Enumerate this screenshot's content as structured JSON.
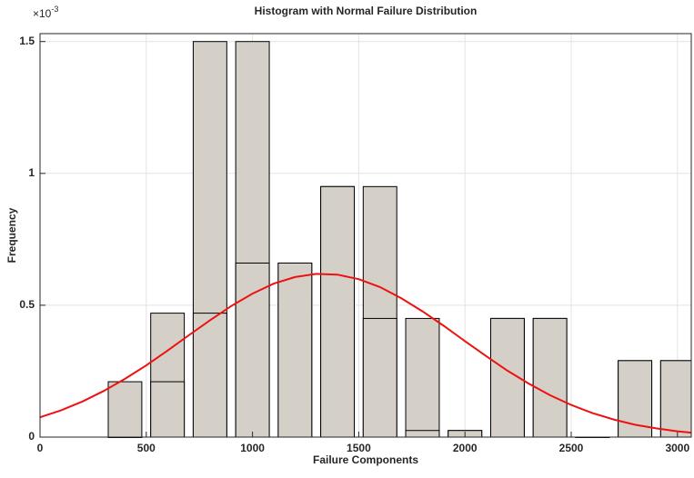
{
  "chart_data": {
    "type": "bar",
    "title": "Histogram with Normal Failure Distribution",
    "xlabel": "Failure Components",
    "ylabel": "Frequency",
    "y_multiplier": "×10",
    "y_multiplier_exponent": "-3",
    "x": [
      400,
      600,
      800,
      1000,
      1200,
      1400,
      1600,
      1800,
      2000,
      2200,
      2400,
      2600,
      2800,
      3000
    ],
    "series": [
      {
        "color": "#d4d0c8",
        "values": [
          0.21,
          0.47,
          1.5,
          1.5,
          0.66,
          0.95,
          0.95,
          0.45,
          0.025,
          0.45,
          0.45,
          0,
          0.29,
          0.29
        ]
      },
      {
        "color": "#d4d0c8",
        "values": [
          0,
          0.21,
          0.47,
          0.66,
          0.66,
          0.95,
          0.45,
          0.025,
          0.025,
          0.45,
          0.45,
          0,
          0.29,
          0.29
        ]
      }
    ],
    "curve": {
      "type": "line",
      "color": "#ee1111",
      "x": [
        0,
        100,
        200,
        300,
        400,
        500,
        600,
        700,
        800,
        900,
        1000,
        1100,
        1200,
        1300,
        1400,
        1500,
        1600,
        1700,
        1800,
        1900,
        2000,
        2100,
        2200,
        2300,
        2400,
        2500,
        2600,
        2700,
        2800,
        2900,
        3000,
        3065
      ],
      "values": [
        0.075,
        0.102,
        0.135,
        0.175,
        0.221,
        0.272,
        0.328,
        0.386,
        0.443,
        0.497,
        0.544,
        0.582,
        0.607,
        0.619,
        0.616,
        0.599,
        0.569,
        0.527,
        0.477,
        0.422,
        0.364,
        0.307,
        0.252,
        0.203,
        0.159,
        0.122,
        0.091,
        0.067,
        0.047,
        0.033,
        0.022,
        0.017
      ]
    },
    "xlim": [
      0,
      3065
    ],
    "xticks": [
      0,
      500,
      1000,
      1500,
      2000,
      2500,
      3000
    ],
    "ylim": [
      0,
      1.53
    ],
    "yticks": [
      0,
      0.5,
      1,
      1.5
    ],
    "grid": true
  }
}
